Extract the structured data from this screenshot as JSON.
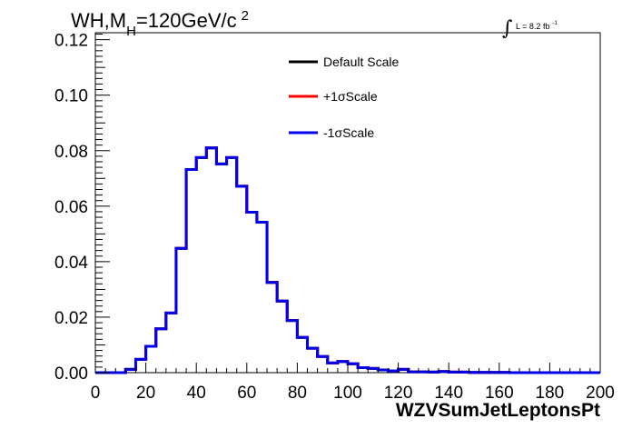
{
  "chart_data": {
    "type": "line",
    "title_parts": {
      "main": "WH,M",
      "sub": "H",
      "rest": "=120GeV/c",
      "sup": "2"
    },
    "lumi_parts": {
      "integral": "∫",
      "text": "L = 8.2 fb",
      "sup": "-1"
    },
    "xlabel": "WZVSumJetLeptonsPt",
    "ylabel": "",
    "xlim": [
      0,
      200
    ],
    "ylim": [
      0,
      0.1225
    ],
    "x_ticks": [
      "0",
      "20",
      "40",
      "60",
      "80",
      "100",
      "120",
      "140",
      "160",
      "180",
      "200"
    ],
    "y_ticks": [
      "0.00",
      "0.02",
      "0.04",
      "0.06",
      "0.08",
      "0.10",
      "0.12"
    ],
    "grid": false,
    "legend_position": "top-center",
    "bin_edges": [
      0,
      4,
      8,
      12,
      16,
      20,
      24,
      28,
      32,
      36,
      40,
      44,
      48,
      52,
      56,
      60,
      64,
      68,
      72,
      76,
      80,
      84,
      88,
      92,
      96,
      100,
      104,
      108,
      112,
      116,
      120,
      124,
      128,
      132,
      136,
      140,
      144,
      148,
      152,
      156,
      160,
      164,
      168,
      172,
      176,
      180,
      184,
      188,
      192,
      196,
      200
    ],
    "series": [
      {
        "name": "Default Scale",
        "color": "#000000",
        "values": [
          0,
          0,
          0,
          0.0012,
          0.0048,
          0.0095,
          0.0158,
          0.0215,
          0.0448,
          0.0732,
          0.0775,
          0.081,
          0.0752,
          0.0775,
          0.0672,
          0.0578,
          0.0542,
          0.0325,
          0.0258,
          0.0188,
          0.0127,
          0.0088,
          0.0058,
          0.0035,
          0.004,
          0.0032,
          0.0018,
          0.0015,
          0.001,
          0.0006,
          0.0012,
          0.0003,
          0.0003,
          0.0002,
          0.0004,
          0.0002,
          0.0002,
          0.0001,
          0.0001,
          0.0001,
          0.0001,
          0,
          0,
          0,
          0,
          0,
          0,
          0,
          0,
          0
        ]
      },
      {
        "name": "+1σScale",
        "color": "#ff0000",
        "values": [
          0,
          0,
          0,
          0.0012,
          0.0048,
          0.0095,
          0.0158,
          0.0215,
          0.0448,
          0.0732,
          0.0775,
          0.081,
          0.0752,
          0.0775,
          0.0672,
          0.0578,
          0.0542,
          0.0325,
          0.0258,
          0.0188,
          0.0127,
          0.0088,
          0.0058,
          0.0035,
          0.004,
          0.0032,
          0.0018,
          0.0015,
          0.001,
          0.0006,
          0.0012,
          0.0003,
          0.0003,
          0.0002,
          0.0004,
          0.0002,
          0.0002,
          0.0001,
          0.0001,
          0.0001,
          0.0001,
          0,
          0,
          0,
          0,
          0,
          0,
          0,
          0,
          0
        ]
      },
      {
        "name": "-1σScale",
        "color": "#0000ee",
        "values": [
          0,
          0,
          0,
          0.0012,
          0.0048,
          0.0095,
          0.0158,
          0.0215,
          0.0448,
          0.0732,
          0.0775,
          0.081,
          0.0752,
          0.0775,
          0.0672,
          0.0578,
          0.0542,
          0.0325,
          0.0258,
          0.0188,
          0.0127,
          0.0088,
          0.0058,
          0.0035,
          0.004,
          0.0032,
          0.0018,
          0.0015,
          0.001,
          0.0006,
          0.0012,
          0.0003,
          0.0003,
          0.0002,
          0.0004,
          0.0002,
          0.0002,
          0.0001,
          0.0001,
          0.0001,
          0.0001,
          0,
          0,
          0,
          0,
          0,
          0,
          0,
          0,
          0
        ]
      }
    ]
  }
}
